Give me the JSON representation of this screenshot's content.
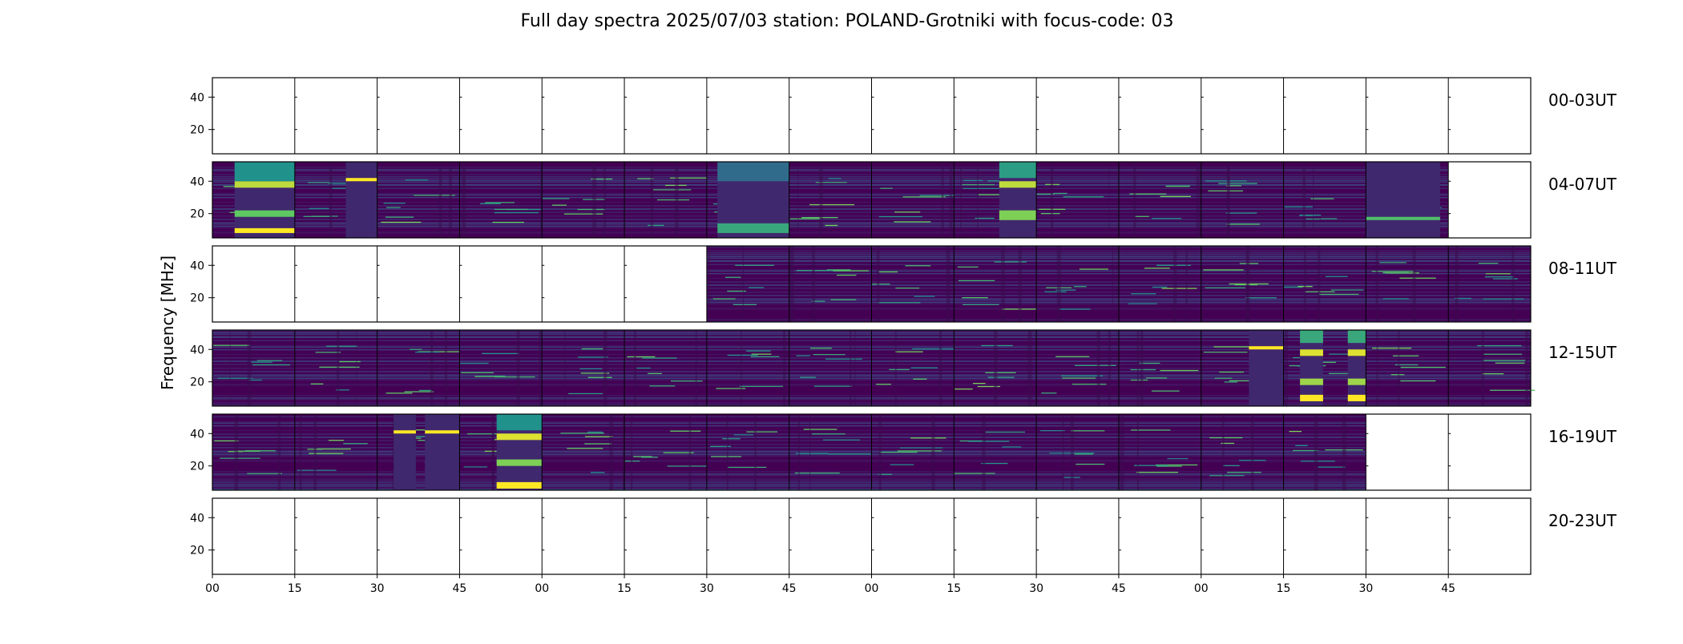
{
  "chart_data": {
    "type": "heatmap",
    "title": "Full day spectra 2025/07/03 station: POLAND-Grotniki with focus-code: 03",
    "ylabel": "Frequency [MHz]",
    "xlabel": "",
    "ylim": [
      5,
      52
    ],
    "yticks": [
      20,
      40
    ],
    "xtick_labels": [
      "00",
      "15",
      "30",
      "45",
      "00",
      "15",
      "30",
      "45",
      "00",
      "15",
      "30",
      "45",
      "00",
      "15",
      "30",
      "45"
    ],
    "panels_per_row": 16,
    "panel_minutes": 15,
    "colormap": [
      "#440154",
      "#3b528b",
      "#21918c",
      "#5ec962",
      "#fde725"
    ],
    "rows": [
      {
        "label": "00-03UT",
        "present": [
          0,
          0,
          0,
          0,
          0,
          0,
          0,
          0,
          0,
          0,
          0,
          0,
          0,
          0,
          0,
          0
        ]
      },
      {
        "label": "04-07UT",
        "present": [
          1,
          1,
          1,
          1,
          1,
          1,
          1,
          1,
          1,
          1,
          1,
          1,
          1,
          1,
          1,
          0
        ],
        "bright_bands": [
          {
            "panel": 0,
            "t": [
              0.27,
              1.0
            ],
            "f": [
              [
                8,
                11,
                1.0
              ],
              [
                36,
                40,
                0.9
              ],
              [
                18,
                22,
                0.75
              ],
              [
                40,
                52,
                0.5
              ]
            ]
          },
          {
            "panel": 1,
            "t": [
              0.62,
              1.0
            ],
            "f": [
              [
                40,
                42,
                1.0
              ]
            ]
          },
          {
            "panel": 6,
            "t": [
              0.13,
              1.0
            ],
            "f": [
              [
                8,
                14,
                0.6
              ],
              [
                40,
                52,
                0.35
              ]
            ]
          },
          {
            "panel": 9,
            "t": [
              0.55,
              1.0
            ],
            "f": [
              [
                36,
                40,
                0.9
              ],
              [
                16,
                22,
                0.8
              ],
              [
                42,
                52,
                0.55
              ]
            ]
          },
          {
            "panel": 14,
            "t": [
              0.0,
              0.9
            ],
            "f": [
              [
                16,
                18,
                0.7
              ]
            ]
          }
        ]
      },
      {
        "label": "08-11UT",
        "present": [
          0,
          0,
          0,
          0,
          0,
          0,
          1,
          1,
          1,
          1,
          1,
          1,
          1,
          1,
          1,
          1
        ]
      },
      {
        "label": "12-15UT",
        "present": [
          1,
          1,
          1,
          1,
          1,
          1,
          1,
          1,
          1,
          1,
          1,
          1,
          1,
          1,
          1,
          1
        ],
        "bright_bands": [
          {
            "panel": 12,
            "t": [
              0.58,
              1.0
            ],
            "f": [
              [
                40,
                42,
                1.0
              ]
            ]
          },
          {
            "panel": 13,
            "t": [
              0.2,
              0.48
            ],
            "f": [
              [
                8,
                12,
                1.0
              ],
              [
                36,
                40,
                0.95
              ],
              [
                18,
                22,
                0.85
              ],
              [
                44,
                52,
                0.6
              ]
            ]
          },
          {
            "panel": 13,
            "t": [
              0.78,
              1.0
            ],
            "f": [
              [
                8,
                12,
                1.0
              ],
              [
                36,
                40,
                0.95
              ],
              [
                18,
                22,
                0.85
              ],
              [
                44,
                52,
                0.6
              ]
            ]
          }
        ]
      },
      {
        "label": "16-19UT",
        "present": [
          1,
          1,
          1,
          1,
          1,
          1,
          1,
          1,
          1,
          1,
          1,
          1,
          1,
          1,
          0,
          0
        ],
        "bright_bands": [
          {
            "panel": 2,
            "t": [
              0.2,
              0.47
            ],
            "f": [
              [
                40,
                42,
                1.0
              ]
            ]
          },
          {
            "panel": 2,
            "t": [
              0.58,
              1.0
            ],
            "f": [
              [
                40,
                42,
                1.0
              ]
            ]
          },
          {
            "panel": 3,
            "t": [
              0.45,
              1.0
            ],
            "f": [
              [
                6,
                10,
                1.0
              ],
              [
                36,
                40,
                0.95
              ],
              [
                20,
                24,
                0.8
              ],
              [
                42,
                52,
                0.5
              ]
            ]
          }
        ]
      },
      {
        "label": "20-23UT",
        "present": [
          0,
          0,
          0,
          0,
          0,
          0,
          0,
          0,
          0,
          0,
          0,
          0,
          0,
          0,
          0,
          0
        ]
      }
    ]
  }
}
